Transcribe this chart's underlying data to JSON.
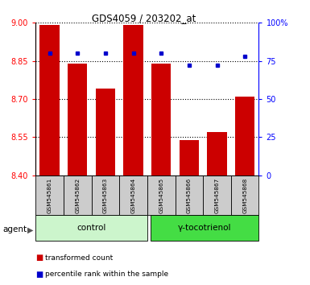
{
  "title": "GDS4059 / 203202_at",
  "samples": [
    "GSM545861",
    "GSM545862",
    "GSM545863",
    "GSM545864",
    "GSM545865",
    "GSM545866",
    "GSM545867",
    "GSM545868"
  ],
  "red_values": [
    8.99,
    8.84,
    8.74,
    8.99,
    8.84,
    8.54,
    8.57,
    8.71
  ],
  "blue_values": [
    80,
    80,
    80,
    80,
    80,
    72,
    72,
    78
  ],
  "ylim_left": [
    8.4,
    9.0
  ],
  "yticks_left": [
    8.4,
    8.55,
    8.7,
    8.85,
    9.0
  ],
  "yticks_right": [
    0,
    25,
    50,
    75,
    100
  ],
  "ylim_right": [
    0,
    100
  ],
  "control_label": "control",
  "treatment_label": "γ-tocotrienol",
  "agent_label": "agent",
  "legend_red": "transformed count",
  "legend_blue": "percentile rank within the sample",
  "bar_color": "#cc0000",
  "dot_color": "#0000cc",
  "control_bg": "#ccf5cc",
  "treatment_bg": "#44dd44",
  "sample_bg": "#cccccc",
  "bar_bottom": 8.4,
  "bar_width": 0.7,
  "n_control": 4,
  "n_treatment": 4
}
